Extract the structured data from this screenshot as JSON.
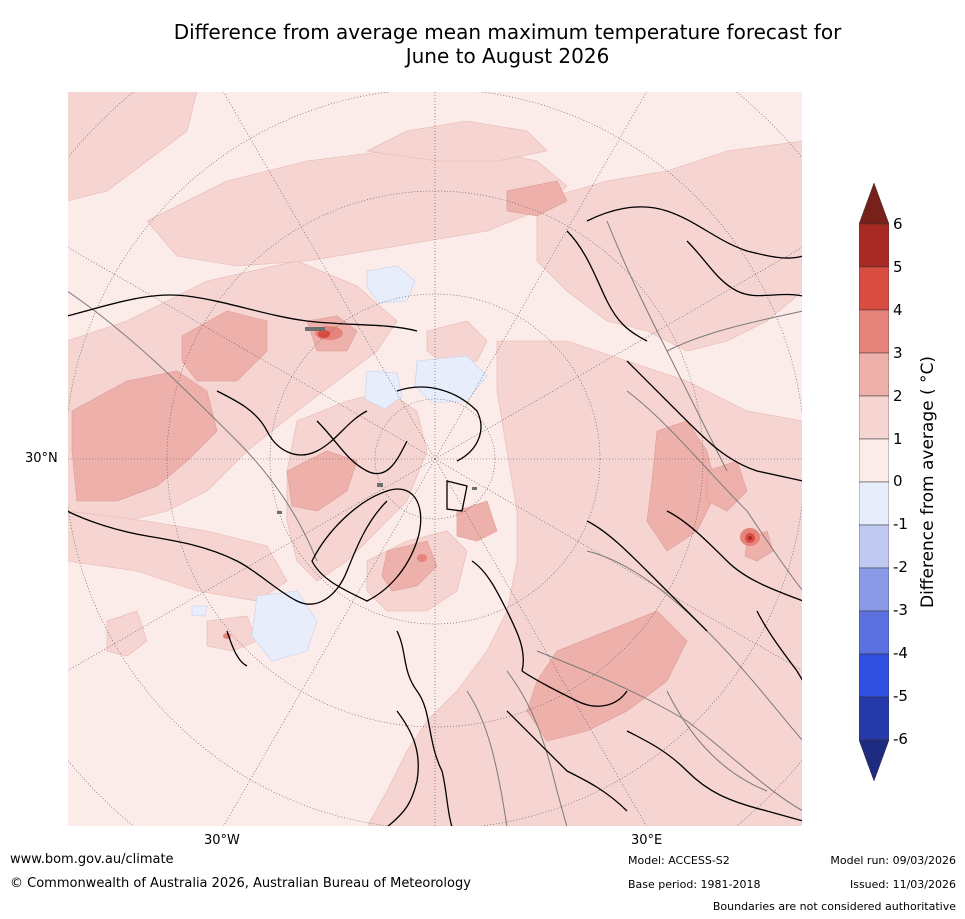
{
  "title": {
    "line1": "Difference from average mean maximum temperature forecast for",
    "line2": "June to August 2026"
  },
  "map": {
    "lat_label": "30°N",
    "lon_labels": [
      "30°W",
      "30°E"
    ],
    "projection": "north-polar-stereographic"
  },
  "colorbar": {
    "title": "Difference from average ( °C)",
    "ticks": [
      "6",
      "5",
      "4",
      "3",
      "2",
      "1",
      "0",
      "-1",
      "-2",
      "-3",
      "-4",
      "-5",
      "-6"
    ],
    "bands": [
      {
        "range": [
          6,
          99
        ],
        "color": "#78201a"
      },
      {
        "range": [
          5,
          6
        ],
        "color": "#a82a24"
      },
      {
        "range": [
          4,
          5
        ],
        "color": "#d94c41"
      },
      {
        "range": [
          3,
          4
        ],
        "color": "#e6837b"
      },
      {
        "range": [
          2,
          3
        ],
        "color": "#eeb0aa"
      },
      {
        "range": [
          1,
          2
        ],
        "color": "#f5d4d1"
      },
      {
        "range": [
          0,
          1
        ],
        "color": "#fbebe9"
      },
      {
        "range": [
          -1,
          0
        ],
        "color": "#e8edfb"
      },
      {
        "range": [
          -2,
          -1
        ],
        "color": "#c0c9f1"
      },
      {
        "range": [
          -3,
          -2
        ],
        "color": "#8a9ae8"
      },
      {
        "range": [
          -4,
          -3
        ],
        "color": "#5b71e0"
      },
      {
        "range": [
          -5,
          -4
        ],
        "color": "#2e4fe0"
      },
      {
        "range": [
          -6,
          -5
        ],
        "color": "#2639a8"
      },
      {
        "range": [
          -99,
          -6
        ],
        "color": "#1f2b80"
      }
    ]
  },
  "footer": {
    "website": "www.bom.gov.au/climate",
    "copyright": "© Commonwealth of Australia 2026, Australian Bureau of Meteorology",
    "model": "Model: ACCESS-S2",
    "base_period": "Base period: 1981-2018",
    "model_run": "Model run: 09/03/2026",
    "issued": "Issued: 11/03/2026",
    "disclaimer": "Boundaries are not considered authoritative"
  }
}
